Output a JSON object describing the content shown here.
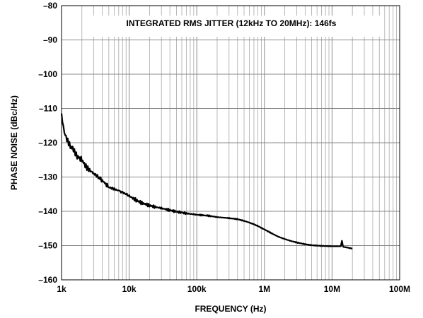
{
  "chart_data": {
    "type": "line",
    "title": "",
    "xlabel": "FREQUENCY (Hz)",
    "ylabel": "PHASE NOISE (dBc/Hz)",
    "annotation": "INTEGRATED RMS JITTER (12kHz TO 20MHz): 146fs",
    "x_scale": "log",
    "xlim": [
      1000,
      100000000
    ],
    "ylim": [
      -160,
      -80
    ],
    "grid": true,
    "x_ticks": [
      1000,
      10000,
      100000,
      1000000,
      10000000,
      100000000
    ],
    "x_tick_labels": [
      "1k",
      "10k",
      "100k",
      "1M",
      "10M",
      "100M"
    ],
    "y_ticks": [
      -80,
      -90,
      -100,
      -110,
      -120,
      -130,
      -140,
      -150,
      -160
    ],
    "y_tick_labels": [
      "–80",
      "–90",
      "–100",
      "–110",
      "–120",
      "–130",
      "–140",
      "–150",
      "–160"
    ],
    "series": [
      {
        "color": "#000000",
        "x": [
          1000,
          1100,
          1200,
          1350,
          1500,
          1700,
          2000,
          2300,
          2600,
          3000,
          3500,
          4000,
          4500,
          5000,
          6000,
          7000,
          8000,
          9000,
          10000,
          12000,
          15000,
          20000,
          25000,
          30000,
          40000,
          50000,
          70000,
          100000,
          150000,
          200000,
          300000,
          400000,
          500000,
          600000,
          700000,
          800000,
          1000000,
          1300000,
          1600000,
          2000000,
          2500000,
          3000000,
          4000000,
          5000000,
          7000000,
          10000000,
          12000000,
          13500000,
          14000000,
          14500000,
          15000000,
          17000000,
          20000000
        ],
        "y": [
          -112,
          -117,
          -119,
          -121,
          -122,
          -124,
          -125,
          -127,
          -128,
          -129,
          -130,
          -131,
          -132,
          -133,
          -133.5,
          -134,
          -134.5,
          -135,
          -135.5,
          -136.5,
          -137.5,
          -138.3,
          -138.8,
          -139.1,
          -139.7,
          -140.1,
          -140.6,
          -141,
          -141.3,
          -141.7,
          -142,
          -142.3,
          -142.8,
          -143.3,
          -143.8,
          -144.3,
          -145.3,
          -146.5,
          -147.4,
          -148.1,
          -148.7,
          -149.1,
          -149.6,
          -149.9,
          -150.1,
          -150.2,
          -150.2,
          -150.2,
          -148.5,
          -150.3,
          -150.4,
          -150.6,
          -150.9
        ]
      }
    ]
  }
}
